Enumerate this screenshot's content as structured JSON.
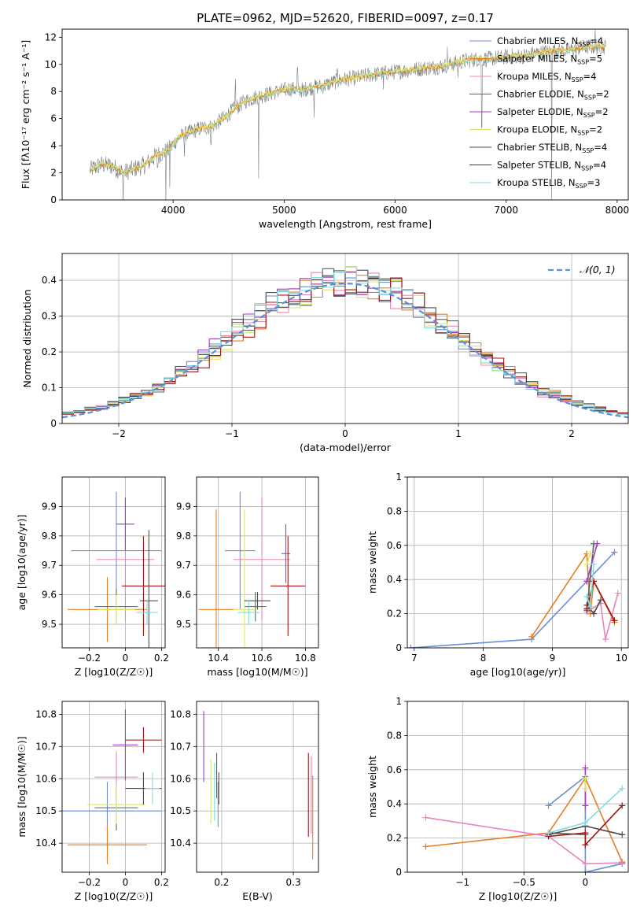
{
  "figure_title": "PLATE=0962, MJD=52620, FIBERID=0097, z=0.17",
  "colors": {
    "spectrum": "#808080",
    "gaussian": "#5b8fd9",
    "grid": "#b0b0b0",
    "series": [
      "#6a8fd6",
      "#e57f27",
      "#e885bd",
      "#55685a",
      "#a43bc4",
      "#dbe56e",
      "#4d4d4d",
      "#a01515",
      "#86dbe0"
    ]
  },
  "chart_data": [
    {
      "id": "spectrum",
      "type": "line",
      "title": "PLATE=0962, MJD=52620, FIBERID=0097, z=0.17",
      "xlabel": "wavelength [Angstrom, rest frame]",
      "ylabel": "Flux [fλ10⁻¹⁷ erg cm⁻² s⁻¹ A⁻¹]",
      "xlim": [
        3000,
        8100
      ],
      "ylim": [
        0,
        12.6
      ],
      "xticks": [
        4000,
        5000,
        6000,
        7000,
        8000
      ],
      "yticks": [
        0,
        2,
        4,
        6,
        8,
        10,
        12
      ],
      "grid": false,
      "legend_position": "top-right",
      "legend": [
        "Chabrier MILES, N_SSP=4",
        "Salpeter MILES, N_SSP=5",
        "Kroupa MILES, N_SSP=4",
        "Chabrier ELODIE, N_SSP=2",
        "Salpeter ELODIE, N_SSP=2",
        "Kroupa ELODIE, N_SSP=2",
        "Chabrier STELIB, N_SSP=4",
        "Salpeter STELIB, N_SSP=4",
        "Kroupa STELIB, N_SSP=3"
      ],
      "continuum": {
        "x": [
          3250,
          3350,
          3450,
          3550,
          3650,
          3750,
          3850,
          3950,
          4050,
          4150,
          4250,
          4350,
          4450,
          4550,
          4650,
          4750,
          4850,
          4950,
          5050,
          5150,
          5250,
          5350,
          5450,
          5550,
          5650,
          5750,
          5850,
          5950,
          6050,
          6150,
          6250,
          6350,
          6450,
          6550,
          6650,
          6750,
          6850,
          6950,
          7050,
          7150,
          7250,
          7350,
          7450,
          7550,
          7650,
          7750,
          7850
        ],
        "y": [
          2.2,
          2.6,
          2.5,
          2.0,
          2.3,
          2.6,
          3.3,
          3.6,
          4.6,
          5.0,
          5.3,
          5.4,
          6.0,
          6.7,
          7.3,
          7.6,
          7.8,
          8.0,
          8.2,
          8.1,
          8.3,
          8.4,
          8.7,
          8.9,
          9.0,
          9.2,
          9.3,
          9.4,
          9.5,
          9.6,
          9.7,
          9.8,
          9.9,
          10.1,
          10.3,
          10.4,
          10.4,
          10.5,
          10.6,
          10.6,
          10.8,
          10.9,
          11.0,
          11.0,
          11.2,
          11.3,
          11.3
        ]
      },
      "absorption_lines": [
        {
          "x": 3550,
          "depth": 2.5
        },
        {
          "x": 3860,
          "depth": 1.8
        },
        {
          "x": 3934,
          "depth": 3.6
        },
        {
          "x": 3969,
          "depth": 3.4
        },
        {
          "x": 4102,
          "depth": 1.5
        },
        {
          "x": 4340,
          "depth": 1.6
        },
        {
          "x": 4770,
          "depth": 5.7
        },
        {
          "x": 5175,
          "depth": 1.2
        },
        {
          "x": 5270,
          "depth": 1.8
        },
        {
          "x": 5895,
          "depth": 2.0
        },
        {
          "x": 6565,
          "depth": 1.6
        },
        {
          "x": 6780,
          "depth": 10.4
        },
        {
          "x": 7410,
          "depth": 10.9
        }
      ],
      "emission_spikes": [
        {
          "x": 4560,
          "height": 1.8
        },
        {
          "x": 5120,
          "height": 1.4
        },
        {
          "x": 5480,
          "height": 1.2
        },
        {
          "x": 6470,
          "height": 0.9
        },
        {
          "x": 7800,
          "height": 0.8
        }
      ]
    },
    {
      "id": "residuals",
      "type": "line",
      "xlabel": "(data-model)/error",
      "ylabel": "Normed distribution",
      "xlim": [
        -2.5,
        2.5
      ],
      "ylim": [
        0,
        0.475
      ],
      "xticks": [
        -2,
        -1,
        0,
        1,
        2
      ],
      "yticks": [
        0.0,
        0.1,
        0.2,
        0.3,
        0.4
      ],
      "grid": true,
      "legend_position": "top-right",
      "legend": [
        "𝒩(0, 1)"
      ],
      "gaussian": {
        "mean": 0,
        "sigma": 1
      },
      "hist_bin_width": 0.1,
      "hist_center_offsets": [
        0,
        0.03,
        -0.02,
        0.04,
        -0.03,
        0.02,
        -0.04,
        0.05,
        -0.01
      ]
    },
    {
      "id": "z-age",
      "type": "scatter",
      "xlabel": "Z [log10(Z/Z☉)]",
      "ylabel": "age  [log10(age/yr)]",
      "xlim": [
        -0.35,
        0.22
      ],
      "ylim": [
        9.42,
        10.0
      ],
      "xticks": [
        -0.2,
        0.0,
        0.2
      ],
      "yticks": [
        9.5,
        9.6,
        9.7,
        9.8,
        9.9
      ],
      "grid": true,
      "points": [
        {
          "x": -0.05,
          "xerr": 0.25,
          "y": 9.75,
          "yerr": 0.2
        },
        {
          "x": -0.1,
          "xerr": 0.22,
          "y": 9.55,
          "yerr": 0.11
        },
        {
          "x": 0.0,
          "xerr": 0.16,
          "y": 9.72,
          "yerr": 0.21
        },
        {
          "x": -0.05,
          "xerr": 0.12,
          "y": 9.56,
          "yerr": 0.06
        },
        {
          "x": 0.0,
          "xerr": 0.05,
          "y": 9.84,
          "yerr": 0.09
        },
        {
          "x": -0.05,
          "xerr": 0.1,
          "y": 9.55,
          "yerr": 0.05
        },
        {
          "x": 0.13,
          "xerr": 0.05,
          "y": 9.58,
          "yerr": 0.24
        },
        {
          "x": 0.1,
          "xerr": 0.12,
          "y": 9.63,
          "yerr": 0.17
        },
        {
          "x": 0.12,
          "xerr": 0.06,
          "y": 9.54,
          "yerr": 0.04
        }
      ]
    },
    {
      "id": "mass-age",
      "type": "scatter",
      "xlabel": "mass [log10(M/M☉)]",
      "ylabel": "",
      "xlim": [
        10.3,
        10.86
      ],
      "ylim": [
        9.42,
        10.0
      ],
      "xticks": [
        10.4,
        10.6,
        10.8
      ],
      "yticks": [
        9.5,
        9.6,
        9.7,
        9.8,
        9.9
      ],
      "grid": true,
      "points": [
        {
          "x": 10.5,
          "xerr": 0.07,
          "y": 9.75,
          "yerr": 0.2
        },
        {
          "x": 10.39,
          "xerr": 0.08,
          "y": 9.55,
          "yerr": 0.34
        },
        {
          "x": 10.6,
          "xerr": 0.13,
          "y": 9.72,
          "yerr": 0.21
        },
        {
          "x": 10.57,
          "xerr": 0.05,
          "y": 9.56,
          "yerr": 0.05
        },
        {
          "x": 10.71,
          "xerr": 0.02,
          "y": 9.74,
          "yerr": 0.1
        },
        {
          "x": 10.52,
          "xerr": 0.05,
          "y": 9.55,
          "yerr": 0.34
        },
        {
          "x": 10.58,
          "xerr": 0.06,
          "y": 9.58,
          "yerr": 0.03
        },
        {
          "x": 10.72,
          "xerr": 0.08,
          "y": 9.63,
          "yerr": 0.17
        },
        {
          "x": 10.54,
          "xerr": 0.05,
          "y": 9.54,
          "yerr": 0.04
        }
      ]
    },
    {
      "id": "age-weight",
      "type": "line",
      "xlabel": "age  [log10(age/yr)]",
      "ylabel": "mass weight",
      "xlim": [
        6.9,
        10.1
      ],
      "ylim": [
        0,
        1.0
      ],
      "xticks": [
        7,
        8,
        9,
        10
      ],
      "yticks": [
        0.0,
        0.2,
        0.4,
        0.6,
        0.8,
        1.0
      ],
      "grid": true,
      "series": [
        {
          "x": [
            6.95,
            8.7,
            9.5,
            9.9
          ],
          "y": [
            0.0,
            0.05,
            0.39,
            0.56
          ]
        },
        {
          "x": [
            8.7,
            9.5,
            9.55,
            9.6,
            9.9
          ],
          "y": [
            0.065,
            0.55,
            0.2,
            0.39,
            0.15
          ]
        },
        {
          "x": [
            9.5,
            9.7,
            9.77,
            9.95
          ],
          "y": [
            0.21,
            0.26,
            0.05,
            0.32
          ]
        },
        {
          "x": [
            9.5,
            9.6
          ],
          "y": [
            0.22,
            0.61
          ]
        },
        {
          "x": [
            9.5,
            9.65
          ],
          "y": [
            0.39,
            0.61
          ]
        },
        {
          "x": [
            9.5,
            9.55
          ],
          "y": [
            0.49,
            0.55
          ]
        },
        {
          "x": [
            9.5,
            9.6,
            9.7
          ],
          "y": [
            0.25,
            0.2,
            0.28
          ]
        },
        {
          "x": [
            9.5,
            9.6,
            9.9
          ],
          "y": [
            0.23,
            0.39,
            0.16
          ]
        },
        {
          "x": [
            9.5,
            9.55,
            9.6
          ],
          "y": [
            0.3,
            0.24,
            0.49
          ]
        }
      ]
    },
    {
      "id": "z-mass",
      "type": "scatter",
      "xlabel": "Z [log10(Z/Z☉)]",
      "ylabel": "mass [log10(M/M☉)]",
      "xlim": [
        -0.35,
        0.22
      ],
      "ylim": [
        10.31,
        10.84
      ],
      "xticks": [
        -0.2,
        0.0,
        0.2
      ],
      "yticks": [
        10.4,
        10.5,
        10.6,
        10.7,
        10.8
      ],
      "grid": true,
      "points": [
        {
          "x": -0.1,
          "xerr": 0.3,
          "y": 10.5,
          "yerr": 0.09
        },
        {
          "x": -0.1,
          "xerr": 0.22,
          "y": 10.395,
          "yerr": 0.06
        },
        {
          "x": -0.05,
          "xerr": 0.12,
          "y": 10.605,
          "yerr": 0.08
        },
        {
          "x": -0.05,
          "xerr": 0.12,
          "y": 10.51,
          "yerr": 0.07
        },
        {
          "x": 0.0,
          "xerr": 0.07,
          "y": 10.705,
          "yerr": 0.11
        },
        {
          "x": -0.05,
          "xerr": 0.16,
          "y": 10.52,
          "yerr": 0.06
        },
        {
          "x": 0.1,
          "xerr": 0.1,
          "y": 10.57,
          "yerr": 0.05
        },
        {
          "x": 0.1,
          "xerr": 0.1,
          "y": 10.72,
          "yerr": 0.04
        },
        {
          "x": 0.15,
          "xerr": 0.04,
          "y": 10.57,
          "yerr": 0.05
        }
      ]
    },
    {
      "id": "ebv-mass",
      "type": "scatter",
      "xlabel": "E(B-V)",
      "ylabel": "",
      "xlim": [
        0.165,
        0.335
      ],
      "ylim": [
        10.31,
        10.84
      ],
      "xticks": [
        0.2,
        0.3
      ],
      "yticks": [
        10.4,
        10.5,
        10.6,
        10.7,
        10.8
      ],
      "grid": true,
      "points": [
        {
          "x": 0.195,
          "xerr": 0,
          "y": 10.52,
          "yerr": 0.07
        },
        {
          "x": 0.327,
          "xerr": 0,
          "y": 10.48,
          "yerr": 0.13
        },
        {
          "x": 0.325,
          "xerr": 0,
          "y": 10.55,
          "yerr": 0.12
        },
        {
          "x": 0.193,
          "xerr": 0,
          "y": 10.61,
          "yerr": 0.07
        },
        {
          "x": 0.175,
          "xerr": 0,
          "y": 10.7,
          "yerr": 0.11
        },
        {
          "x": 0.185,
          "xerr": 0,
          "y": 10.56,
          "yerr": 0.1
        },
        {
          "x": 0.196,
          "xerr": 0,
          "y": 10.57,
          "yerr": 0.05
        },
        {
          "x": 0.321,
          "xerr": 0,
          "y": 10.55,
          "yerr": 0.13
        },
        {
          "x": 0.19,
          "xerr": 0,
          "y": 10.56,
          "yerr": 0.09
        }
      ]
    },
    {
      "id": "z-weight",
      "type": "line",
      "xlabel": "Z [log10(Z/Z☉)]",
      "ylabel": "mass weight",
      "xlim": [
        -1.45,
        0.35
      ],
      "ylim": [
        0,
        1.0
      ],
      "xticks": [
        -1.0,
        -0.5,
        0.0
      ],
      "yticks": [
        0.0,
        0.2,
        0.4,
        0.6,
        0.8,
        1.0
      ],
      "grid": true,
      "series": [
        {
          "x": [
            -0.3,
            0.0,
            0.0,
            0.3
          ],
          "y": [
            0.39,
            0.56,
            0.0,
            0.05
          ]
        },
        {
          "x": [
            -1.3,
            -0.3,
            0.0,
            0.3
          ],
          "y": [
            0.15,
            0.23,
            0.55,
            0.06
          ]
        },
        {
          "x": [
            -1.3,
            -0.3,
            0.0,
            0.3
          ],
          "y": [
            0.32,
            0.21,
            0.05,
            0.055
          ]
        },
        {
          "x": [
            -0.3,
            0.0
          ],
          "y": [
            0.23,
            0.22
          ]
        },
        {
          "x": [
            0.0,
            0.0
          ],
          "y": [
            0.39,
            0.61
          ]
        },
        {
          "x": [
            0.0,
            0.0
          ],
          "y": [
            0.49,
            0.55
          ]
        },
        {
          "x": [
            -0.3,
            0.0,
            0.3
          ],
          "y": [
            0.22,
            0.27,
            0.22
          ]
        },
        {
          "x": [
            -0.3,
            0.0,
            0.0,
            0.3
          ],
          "y": [
            0.21,
            0.23,
            0.16,
            0.39
          ]
        },
        {
          "x": [
            -0.3,
            0.0,
            0.3
          ],
          "y": [
            0.23,
            0.29,
            0.49
          ]
        }
      ]
    }
  ]
}
